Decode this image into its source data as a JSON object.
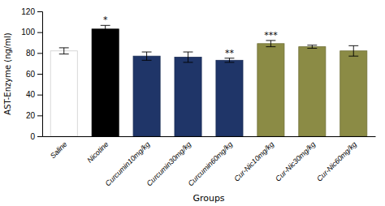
{
  "chart_data": {
    "type": "bar",
    "categories": [
      "Saline",
      "Nicotine",
      "Curcumin10mg/kg",
      "Curcumin30mg/kg",
      "Curcumin60mg/kg",
      "Cur-Nic10mg/kg",
      "Cur-Nic30mg/kg",
      "Cur-Nic60mg/kg"
    ],
    "values": [
      82,
      103,
      77,
      76,
      73,
      89,
      86,
      82
    ],
    "errors": [
      3,
      3.5,
      4,
      5,
      2,
      3,
      1.5,
      5
    ],
    "colors": [
      "#ffffff",
      "#000000",
      "#1f3568",
      "#1f3568",
      "#1f3568",
      "#8b8b45",
      "#8b8b45",
      "#8b8b45"
    ],
    "annotations": [
      {
        "text": "*",
        "category": "Nicotine"
      },
      {
        "text": "**",
        "category": "Curcumin60mg/kg"
      },
      {
        "text": "***",
        "category": "Cur-Nic10mg/kg"
      }
    ],
    "xlabel": "Groups",
    "ylabel": "AST-Enzyme (ng/ml)",
    "ylim": [
      0,
      120
    ],
    "yticks": [
      0,
      20,
      40,
      60,
      80,
      100,
      120
    ],
    "grid": false
  }
}
